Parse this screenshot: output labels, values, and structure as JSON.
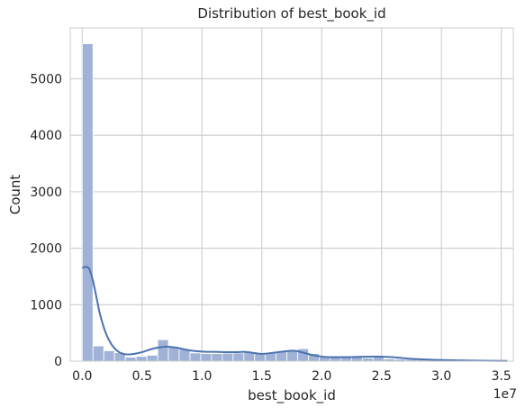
{
  "chart_data": {
    "type": "bar",
    "title": "Distribution of best_book_id",
    "xlabel": "best_book_id",
    "ylabel": "Count",
    "x_offset_label": "1e7",
    "x_multiplier": 10000000,
    "xlim": [
      -0.1,
      3.6
    ],
    "ylim": [
      0,
      5900
    ],
    "x_ticks": [
      0.0,
      0.5,
      1.0,
      1.5,
      2.0,
      2.5,
      3.0,
      3.5
    ],
    "x_tick_labels": [
      "0.0",
      "0.5",
      "1.0",
      "1.5",
      "2.0",
      "2.5",
      "3.0",
      "3.5"
    ],
    "y_ticks": [
      0,
      1000,
      2000,
      3000,
      4000,
      5000
    ],
    "y_tick_labels": [
      "0",
      "1000",
      "2000",
      "3000",
      "4000",
      "5000"
    ],
    "grid": true,
    "bin_start": 0.0,
    "bin_width": 0.09,
    "bin_counts": [
      5620,
      270,
      185,
      150,
      70,
      85,
      105,
      380,
      255,
      210,
      145,
      135,
      135,
      140,
      145,
      165,
      145,
      155,
      175,
      185,
      220,
      135,
      70,
      95,
      95,
      95,
      55,
      75,
      40,
      35,
      30,
      30,
      25,
      20,
      15,
      15,
      10,
      5,
      5,
      5
    ],
    "kde": {
      "x": [
        0.0,
        0.03,
        0.06,
        0.09,
        0.12,
        0.15,
        0.2,
        0.25,
        0.3,
        0.35,
        0.4,
        0.45,
        0.5,
        0.55,
        0.6,
        0.65,
        0.7,
        0.75,
        0.8,
        0.85,
        0.9,
        1.0,
        1.1,
        1.2,
        1.3,
        1.35,
        1.4,
        1.5,
        1.6,
        1.7,
        1.75,
        1.8,
        1.9,
        2.0,
        2.1,
        2.2,
        2.3,
        2.4,
        2.5,
        2.6,
        2.7,
        2.8,
        3.0,
        3.2,
        3.4,
        3.55
      ],
      "y": [
        1650,
        1670,
        1630,
        1420,
        1120,
        820,
        480,
        280,
        170,
        125,
        120,
        135,
        160,
        195,
        225,
        245,
        255,
        250,
        235,
        210,
        190,
        170,
        165,
        160,
        160,
        165,
        155,
        130,
        150,
        175,
        185,
        175,
        120,
        80,
        70,
        70,
        75,
        80,
        80,
        70,
        50,
        35,
        20,
        12,
        6,
        3
      ]
    },
    "colors": {
      "bar_fill": "#a0b3d6",
      "bar_stroke": "#ffffff",
      "kde_line": "#4c72b0",
      "grid": "#cccccc",
      "spine": "#cccccc",
      "background": "#ffffff"
    }
  }
}
